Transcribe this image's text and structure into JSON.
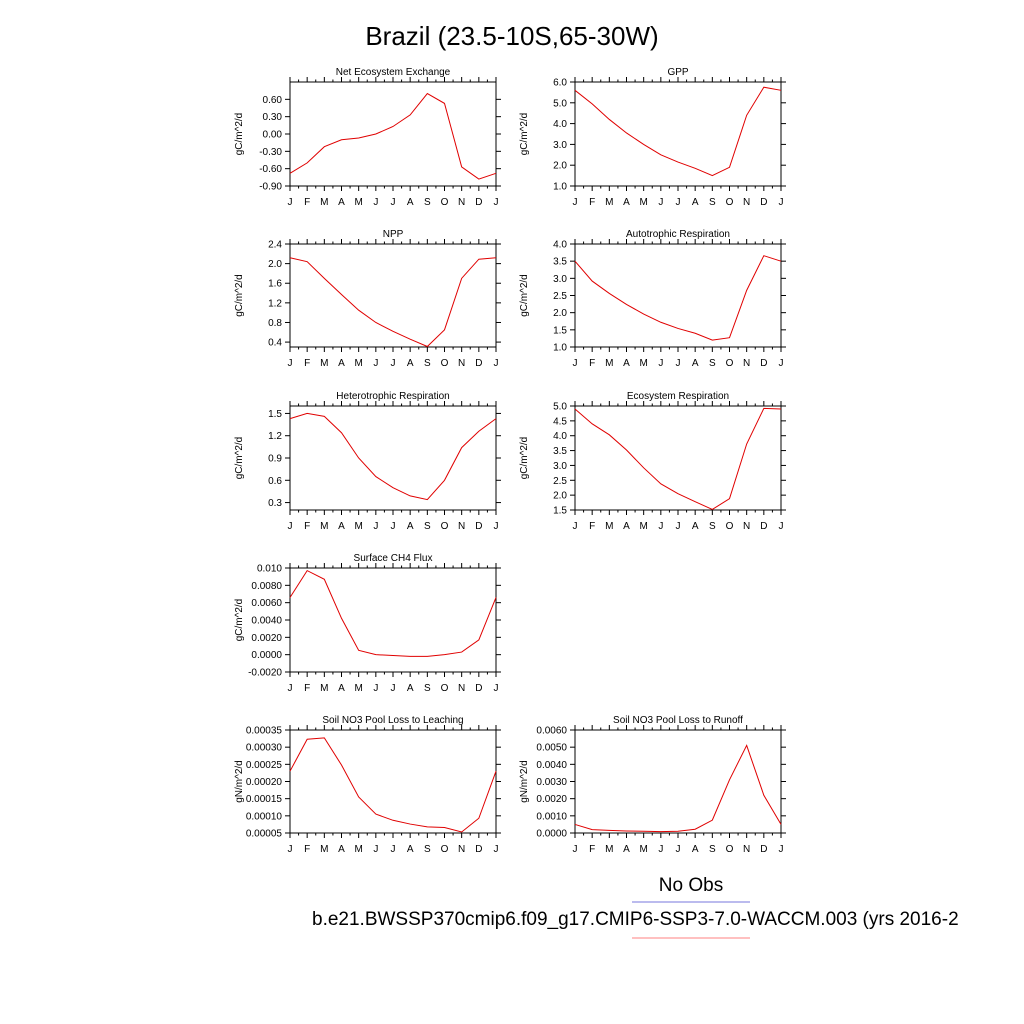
{
  "title": "Brazil (23.5-10S,65-30W)",
  "legend": {
    "obs_label": "No Obs",
    "obs_color": "#7777dd",
    "case_label": "b.e21.BWSSP370cmip6.f09_g17.CMIP6-SSP3-7.0-WACCM.003 (yrs 2016-2",
    "case_color": "#ff8080"
  },
  "line_color": "#e00000",
  "chart_data": [
    {
      "type": "line",
      "title": "Net Ecosystem Exchange",
      "ylabel": "gC/m^2/d",
      "categories": [
        "J",
        "F",
        "M",
        "A",
        "M",
        "J",
        "J",
        "A",
        "S",
        "O",
        "N",
        "D",
        "J"
      ],
      "yticks": [
        "0.60",
        "0.30",
        "0.00",
        "-0.30",
        "-0.60",
        "-0.90"
      ],
      "ylim": [
        -0.9,
        0.9
      ],
      "values": [
        -0.68,
        -0.5,
        -0.22,
        -0.1,
        -0.07,
        0.0,
        0.13,
        0.33,
        0.7,
        0.53,
        -0.57,
        -0.78,
        -0.68
      ]
    },
    {
      "type": "line",
      "title": "GPP",
      "ylabel": "gC/m^2/d",
      "categories": [
        "J",
        "F",
        "M",
        "A",
        "M",
        "J",
        "J",
        "A",
        "S",
        "O",
        "N",
        "D",
        "J"
      ],
      "yticks": [
        "6.0",
        "5.0",
        "4.0",
        "3.0",
        "2.0",
        "1.0"
      ],
      "ylim": [
        1.0,
        6.0
      ],
      "values": [
        5.6,
        4.95,
        4.2,
        3.55,
        3.0,
        2.5,
        2.15,
        1.85,
        1.5,
        1.9,
        4.4,
        5.75,
        5.6
      ]
    },
    {
      "type": "line",
      "title": "NPP",
      "ylabel": "gC/m^2/d",
      "categories": [
        "J",
        "F",
        "M",
        "A",
        "M",
        "J",
        "J",
        "A",
        "S",
        "O",
        "N",
        "D",
        "J"
      ],
      "yticks": [
        "2.4",
        "2.0",
        "1.6",
        "1.2",
        "0.8",
        "0.4"
      ],
      "ylim": [
        0.3,
        2.4
      ],
      "values": [
        2.12,
        2.04,
        1.7,
        1.37,
        1.05,
        0.8,
        0.62,
        0.46,
        0.31,
        0.65,
        1.7,
        2.09,
        2.12
      ]
    },
    {
      "type": "line",
      "title": "Autotrophic Respiration",
      "ylabel": "gC/m^2/d",
      "categories": [
        "J",
        "F",
        "M",
        "A",
        "M",
        "J",
        "J",
        "A",
        "S",
        "O",
        "N",
        "D",
        "J"
      ],
      "yticks": [
        "4.0",
        "3.5",
        "3.0",
        "2.5",
        "2.0",
        "1.5",
        "1.0"
      ],
      "ylim": [
        1.0,
        4.0
      ],
      "values": [
        3.5,
        2.92,
        2.56,
        2.24,
        1.96,
        1.72,
        1.54,
        1.4,
        1.2,
        1.27,
        2.65,
        3.66,
        3.5
      ]
    },
    {
      "type": "line",
      "title": "Heterotrophic Respiration",
      "ylabel": "gC/m^2/d",
      "categories": [
        "J",
        "F",
        "M",
        "A",
        "M",
        "J",
        "J",
        "A",
        "S",
        "O",
        "N",
        "D",
        "J"
      ],
      "yticks": [
        "1.5",
        "1.2",
        "0.9",
        "0.6",
        "0.3"
      ],
      "ylim": [
        0.2,
        1.6
      ],
      "values": [
        1.43,
        1.5,
        1.46,
        1.24,
        0.9,
        0.65,
        0.5,
        0.39,
        0.34,
        0.6,
        1.04,
        1.26,
        1.43
      ]
    },
    {
      "type": "line",
      "title": "Ecosystem Respiration",
      "ylabel": "gC/m^2/d",
      "categories": [
        "J",
        "F",
        "M",
        "A",
        "M",
        "J",
        "J",
        "A",
        "S",
        "O",
        "N",
        "D",
        "J"
      ],
      "yticks": [
        "5.0",
        "4.5",
        "4.0",
        "3.5",
        "3.0",
        "2.5",
        "2.0",
        "1.5"
      ],
      "ylim": [
        1.5,
        5.0
      ],
      "values": [
        4.9,
        4.4,
        4.03,
        3.52,
        2.92,
        2.38,
        2.05,
        1.78,
        1.52,
        1.88,
        3.72,
        4.92,
        4.9
      ]
    },
    {
      "type": "line",
      "title": "Surface CH4 Flux",
      "ylabel": "gC/m^2/d",
      "categories": [
        "J",
        "F",
        "M",
        "A",
        "M",
        "J",
        "J",
        "A",
        "S",
        "O",
        "N",
        "D",
        "J"
      ],
      "yticks": [
        "0.010",
        "0.0080",
        "0.0060",
        "0.0040",
        "0.0020",
        "0.0000",
        "-0.0020"
      ],
      "ylim": [
        -0.002,
        0.01
      ],
      "values": [
        0.0066,
        0.0097,
        0.0087,
        0.0042,
        0.0005,
        0.0,
        -0.0001,
        -0.0002,
        -0.0002,
        0.0,
        0.0003,
        0.0017,
        0.0066
      ]
    },
    {
      "type": "line",
      "title": "Soil NO3 Pool Loss to Leaching",
      "ylabel": "gN/m^2/d",
      "categories": [
        "J",
        "F",
        "M",
        "A",
        "M",
        "J",
        "J",
        "A",
        "S",
        "O",
        "N",
        "D",
        "J"
      ],
      "yticks": [
        "0.00035",
        "0.00030",
        "0.00025",
        "0.00020",
        "0.00015",
        "0.00010",
        "0.00005"
      ],
      "ylim": [
        5e-05,
        0.00035
      ],
      "values": [
        0.00023,
        0.000323,
        0.000327,
        0.000248,
        0.000155,
        0.000105,
        8.7e-05,
        7.6e-05,
        6.8e-05,
        6.6e-05,
        5.3e-05,
        9.3e-05,
        0.00023
      ]
    },
    {
      "type": "line",
      "title": "Soil NO3 Pool Loss to Runoff",
      "ylabel": "gN/m^2/d",
      "categories": [
        "J",
        "F",
        "M",
        "A",
        "M",
        "J",
        "J",
        "A",
        "S",
        "O",
        "N",
        "D",
        "J"
      ],
      "yticks": [
        "0.0060",
        "0.0050",
        "0.0040",
        "0.0030",
        "0.0020",
        "0.0010",
        "0.0000"
      ],
      "ylim": [
        0.0,
        0.006
      ],
      "values": [
        0.0005,
        0.0002,
        0.00015,
        0.00012,
        0.0001,
        8e-05,
        0.0001,
        0.00022,
        0.00075,
        0.0031,
        0.0051,
        0.0022,
        0.0005
      ]
    }
  ]
}
